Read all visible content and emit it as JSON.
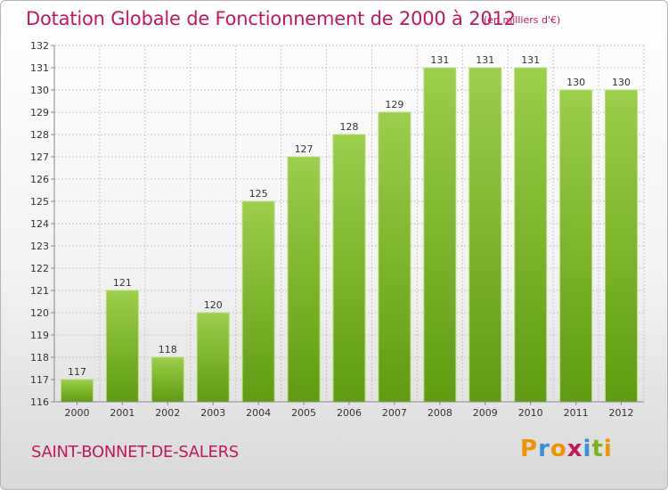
{
  "header": {
    "title": "Dotation Globale de Fonctionnement de 2000 à 2012",
    "unit": "(en milliers d'€)"
  },
  "footer": {
    "commune": "SAINT-BONNET-DE-SALERS"
  },
  "logo": {
    "letters": [
      "P",
      "r",
      "o",
      "x",
      "i",
      "t",
      "i"
    ],
    "colors": [
      "#f39200",
      "#3a8fd9",
      "#f39200",
      "#c2185b",
      "#3a8fd9",
      "#7ab51d",
      "#f39200"
    ]
  },
  "colors": {
    "bar_top": "#9ccf4a",
    "bar_bottom": "#5e9c10",
    "title": "#c2185b",
    "grid": "#c8c8c8"
  },
  "chart_data": {
    "type": "bar",
    "categories": [
      "2000",
      "2001",
      "2002",
      "2003",
      "2004",
      "2005",
      "2006",
      "2007",
      "2008",
      "2009",
      "2010",
      "2011",
      "2012"
    ],
    "values": [
      117,
      121,
      118,
      120,
      125,
      127,
      128,
      129,
      131,
      131,
      131,
      130,
      130
    ],
    "title": "Dotation Globale de Fonctionnement de 2000 à 2012",
    "subtitle": "(en milliers d'€)",
    "xlabel": "",
    "ylabel": "",
    "ylim": [
      116,
      132
    ],
    "yticks": [
      116,
      117,
      118,
      119,
      120,
      121,
      122,
      123,
      124,
      125,
      126,
      127,
      128,
      129,
      130,
      131,
      132
    ],
    "grid": true,
    "data_labels": true
  }
}
